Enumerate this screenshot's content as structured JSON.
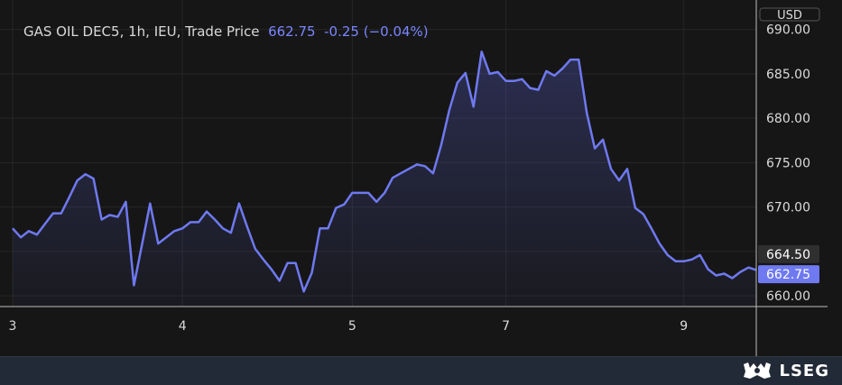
{
  "header": {
    "instrument": "GAS OIL DEC5, 1h, IEU, Trade Price",
    "last": "662.75",
    "change": "-0.25 (−0.04%)"
  },
  "footer": {
    "brand": "LSEG"
  },
  "colors": {
    "line": "#6f79f0",
    "background": "#161616",
    "grid": "#262626",
    "last_tag": "#6f79f0",
    "ref_tag": "#2f2f2f"
  },
  "chart_data": {
    "type": "area",
    "currency_label": "USD",
    "x_tick_labels": [
      "3",
      "4",
      "5",
      "7",
      "9"
    ],
    "x_tick_index": [
      0,
      21,
      42,
      61,
      83
    ],
    "ylim": [
      658.8,
      692.5
    ],
    "y_ticks": [
      660,
      665,
      670,
      675,
      680,
      685,
      690
    ],
    "y_tick_labels": [
      "660.00",
      "670.00",
      "675.00",
      "680.00",
      "685.00",
      "690.00"
    ],
    "y_tick_label_values": [
      660,
      670,
      675,
      680,
      685,
      690
    ],
    "price_tags": [
      {
        "label": "664.50",
        "value": 664.5,
        "style": "ref"
      },
      {
        "label": "662.75",
        "value": 662.75,
        "style": "last"
      }
    ],
    "series": [
      {
        "values": [
          667.6,
          666.6,
          667.3,
          666.9,
          668.1,
          669.3,
          669.3,
          671.1,
          673.0,
          673.7,
          673.2,
          668.6,
          669.1,
          668.9,
          670.6,
          661.2,
          665.8,
          670.4,
          665.9,
          666.6,
          667.3,
          667.6,
          668.3,
          668.3,
          669.5,
          668.6,
          667.6,
          667.1,
          670.4,
          667.8,
          665.3,
          664.1,
          663.0,
          661.7,
          663.7,
          663.7,
          660.5,
          662.6,
          667.6,
          667.6,
          669.9,
          670.3,
          671.6,
          671.6,
          671.6,
          670.6,
          671.6,
          673.3,
          673.8,
          674.3,
          674.8,
          674.6,
          673.8,
          677.0,
          680.9,
          684.0,
          685.1,
          681.3,
          687.5,
          685.0,
          685.2,
          684.2,
          684.2,
          684.4,
          683.4,
          683.2,
          685.3,
          684.8,
          685.6,
          686.6,
          686.6,
          680.6,
          676.6,
          677.6,
          674.3,
          673.0,
          674.3,
          669.9,
          669.2,
          667.6,
          665.9,
          664.6,
          663.9,
          663.9,
          664.1,
          664.6,
          663.0,
          662.3,
          662.5,
          662.0,
          662.7,
          663.2,
          662.9
        ]
      }
    ]
  }
}
